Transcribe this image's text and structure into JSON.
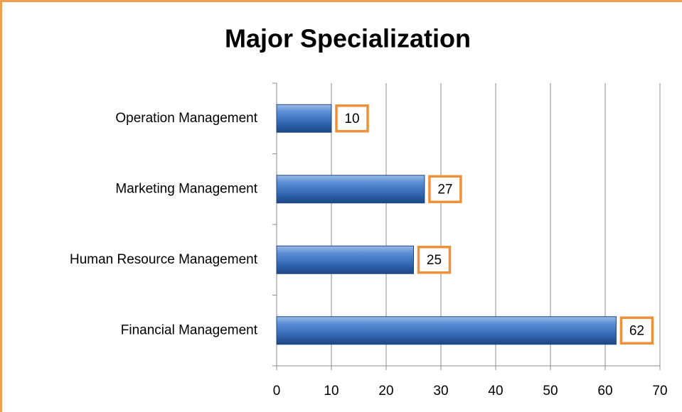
{
  "chart_data": {
    "type": "bar",
    "orientation": "horizontal",
    "title": "Major Specialization",
    "categories": [
      "Financial Management",
      "Human Resource Management",
      "Marketing Management",
      "Operation Management"
    ],
    "values": [
      62,
      25,
      27,
      10
    ],
    "color": "#3a6fb8",
    "xlim": [
      0,
      70
    ],
    "xticks": [
      0,
      10,
      20,
      30,
      40,
      50,
      60,
      70
    ],
    "grid": true
  }
}
